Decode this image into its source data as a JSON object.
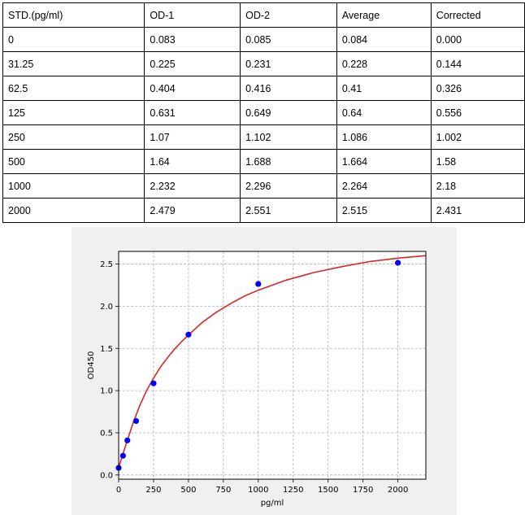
{
  "table": {
    "headers": [
      "STD.(pg/ml)",
      "OD-1",
      "OD-2",
      "Average",
      "Corrected"
    ],
    "rows": [
      [
        "0",
        "0.083",
        "0.085",
        "0.084",
        "0.000"
      ],
      [
        "31.25",
        "0.225",
        "0.231",
        "0.228",
        "0.144"
      ],
      [
        "62.5",
        "0.404",
        "0.416",
        "0.41",
        "0.326"
      ],
      [
        "125",
        "0.631",
        "0.649",
        "0.64",
        "0.556"
      ],
      [
        "250",
        "1.07",
        "1.102",
        "1.086",
        "1.002"
      ],
      [
        "500",
        "1.64",
        "1.688",
        "1.664",
        "1.58"
      ],
      [
        "1000",
        "2.232",
        "2.296",
        "2.264",
        "2.18"
      ],
      [
        "2000",
        "2.479",
        "2.551",
        "2.515",
        "2.431"
      ]
    ]
  },
  "chart_data": {
    "type": "scatter",
    "title": "",
    "xlabel": "pg/ml",
    "ylabel": "OD450",
    "xlim": [
      0,
      2200
    ],
    "ylim": [
      -0.05,
      2.65
    ],
    "xticks": [
      0,
      250,
      500,
      750,
      1000,
      1250,
      1500,
      1750,
      2000
    ],
    "yticks": [
      0.0,
      0.5,
      1.0,
      1.5,
      2.0,
      2.5
    ],
    "xtick_labels": [
      "0",
      "250",
      "500",
      "750",
      "1000",
      "1250",
      "1500",
      "1750",
      "2000"
    ],
    "ytick_labels": [
      "0.0",
      "0.5",
      "1.0",
      "1.5",
      "2.0",
      "2.5"
    ],
    "grid": true,
    "points": {
      "x": [
        0,
        31.25,
        62.5,
        125,
        250,
        500,
        1000,
        2000
      ],
      "y": [
        0.084,
        0.228,
        0.41,
        0.64,
        1.086,
        1.664,
        2.264,
        2.515
      ],
      "color": "#0000ff"
    },
    "fit_curve": {
      "color": "#d62728",
      "x": [
        0,
        50,
        100,
        150,
        200,
        250,
        300,
        350,
        400,
        450,
        500,
        600,
        700,
        800,
        900,
        1000,
        1200,
        1400,
        1600,
        1800,
        2000,
        2200
      ],
      "y": [
        0.09,
        0.35,
        0.6,
        0.82,
        1.0,
        1.15,
        1.28,
        1.39,
        1.49,
        1.58,
        1.66,
        1.81,
        1.93,
        2.03,
        2.12,
        2.19,
        2.31,
        2.4,
        2.47,
        2.53,
        2.57,
        2.6
      ]
    }
  }
}
